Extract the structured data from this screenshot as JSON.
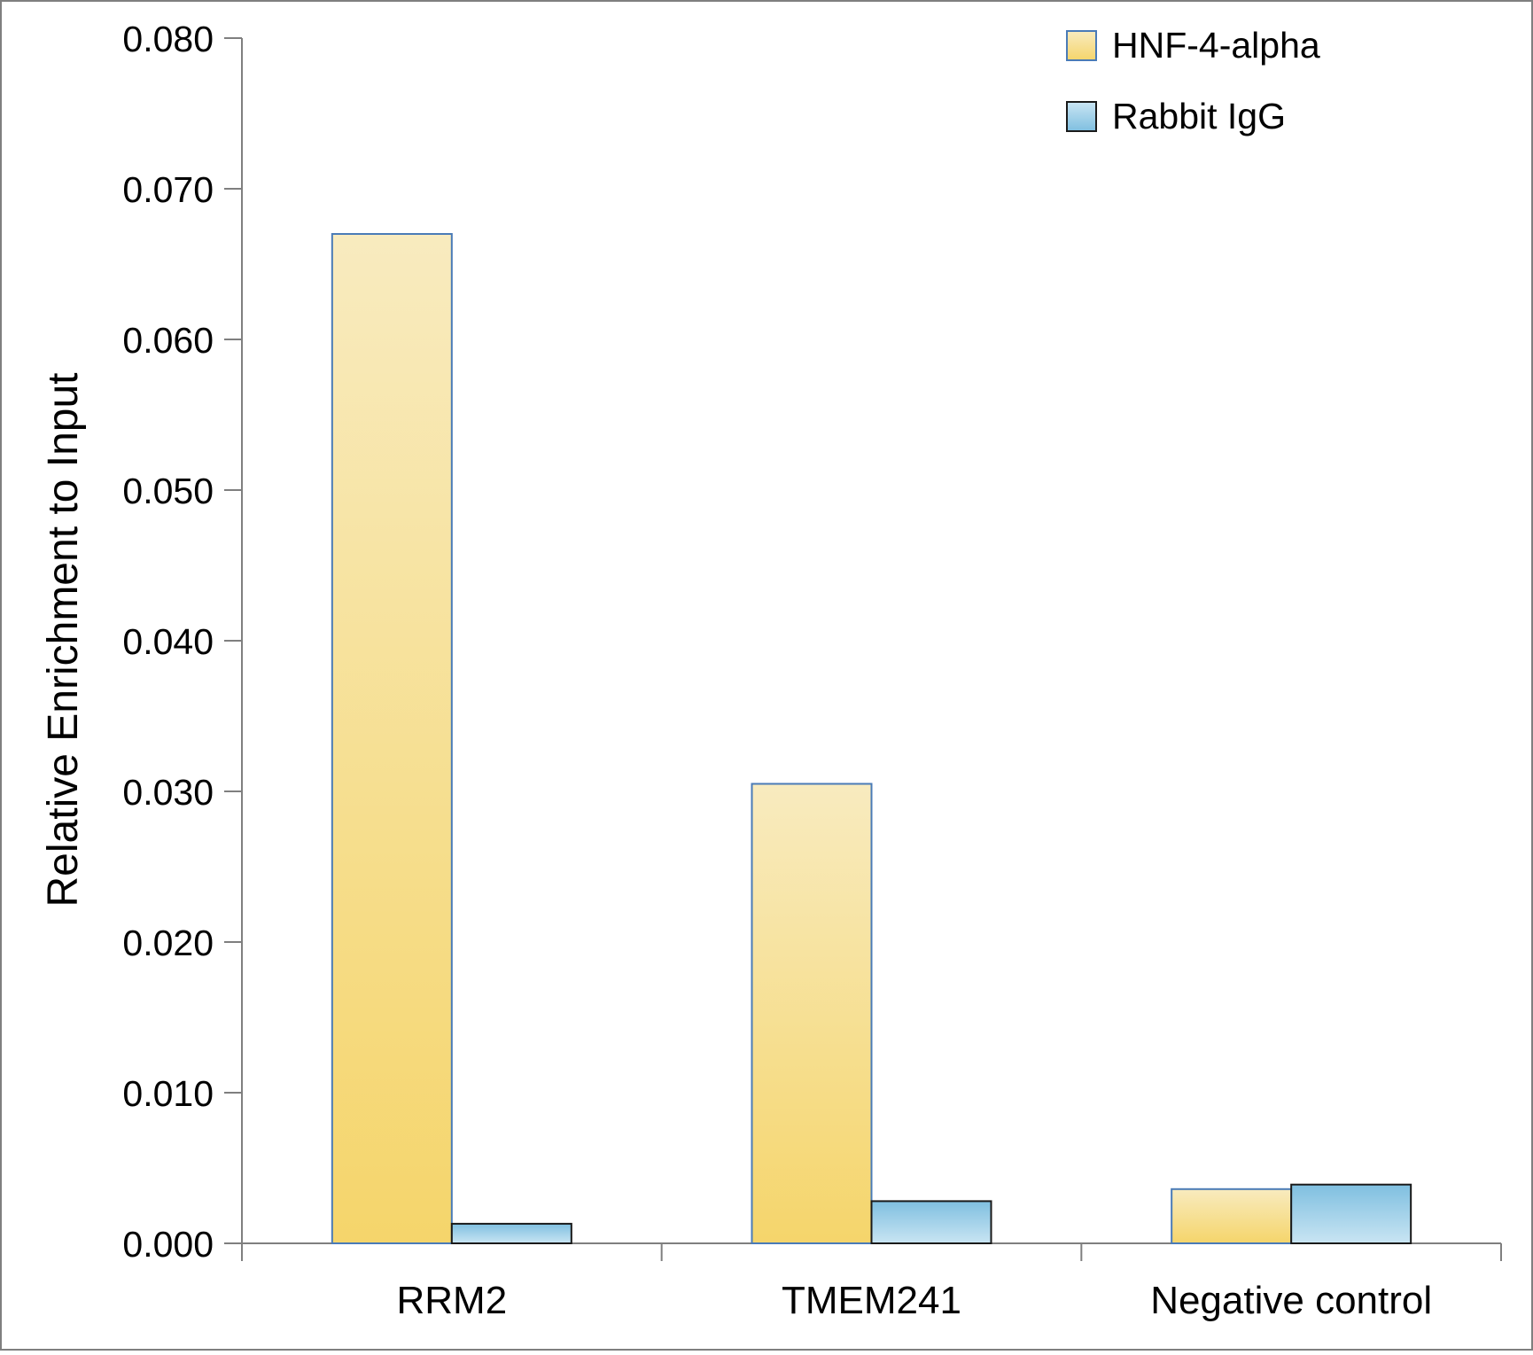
{
  "chart_data": {
    "type": "bar",
    "title": "",
    "xlabel": "",
    "ylabel": "Relative Enrichment to Input",
    "categories": [
      "RRM2",
      "TMEM241",
      "Negative control"
    ],
    "series": [
      {
        "name": "HNF-4-alpha",
        "values": [
          0.067,
          0.0305,
          0.0036
        ],
        "color": "#f5d56b"
      },
      {
        "name": "Rabbit IgG",
        "values": [
          0.0013,
          0.0028,
          0.0039
        ],
        "color": "#7fbfe0"
      }
    ],
    "ylim": [
      0,
      0.08
    ],
    "yticks": [
      "0.000",
      "0.010",
      "0.020",
      "0.030",
      "0.040",
      "0.050",
      "0.060",
      "0.070",
      "0.080"
    ],
    "grid": false,
    "legend_position": "top-right"
  }
}
